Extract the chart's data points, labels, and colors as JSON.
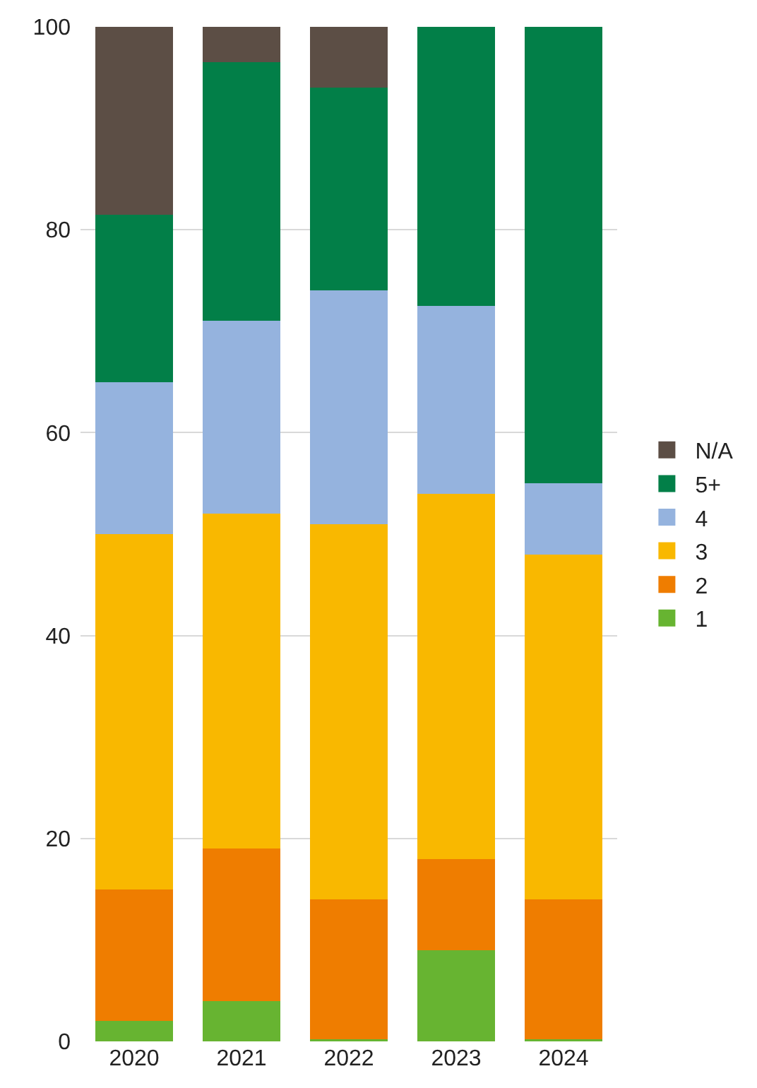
{
  "chart_data": {
    "type": "bar",
    "stacked": true,
    "categories": [
      "2020",
      "2021",
      "2022",
      "2023",
      "2024"
    ],
    "series": [
      {
        "name": "1",
        "color": "#67b431",
        "values": [
          2,
          4,
          0.2,
          9,
          0.2
        ]
      },
      {
        "name": "2",
        "color": "#ef7d00",
        "values": [
          13,
          15,
          13.8,
          9,
          13.8
        ]
      },
      {
        "name": "3",
        "color": "#f9b800",
        "values": [
          35,
          33,
          37,
          36,
          34
        ]
      },
      {
        "name": "4",
        "color": "#95b3de",
        "values": [
          15,
          19,
          23,
          18.5,
          7
        ]
      },
      {
        "name": "5+",
        "color": "#027f48",
        "values": [
          16.5,
          25.5,
          20,
          27.5,
          45
        ]
      },
      {
        "name": "N/A",
        "color": "#5c4e45",
        "values": [
          18.5,
          3.5,
          6,
          0,
          0
        ]
      }
    ],
    "ylim": [
      0,
      100
    ],
    "yticks": [
      0,
      20,
      40,
      60,
      80,
      100
    ],
    "grid": "y",
    "legend": "right"
  }
}
